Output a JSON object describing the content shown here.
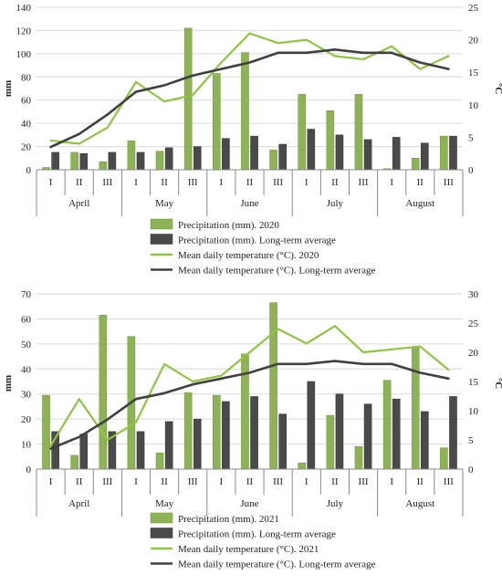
{
  "chart_data": [
    {
      "type": "bar",
      "periods": [
        "I",
        "II",
        "III",
        "I",
        "II",
        "III",
        "I",
        "II",
        "III",
        "I",
        "II",
        "III",
        "I",
        "II",
        "III"
      ],
      "months": [
        "April",
        "May",
        "June",
        "July",
        "August"
      ],
      "ylabel": "mm",
      "y2label": "°C",
      "ylim": [
        0,
        140
      ],
      "y2lim": [
        0,
        25
      ],
      "yticks": [
        "0",
        "20",
        "40",
        "60",
        "80",
        "100",
        "120",
        "140"
      ],
      "y2ticks": [
        "0",
        "5",
        "10",
        "15",
        "20",
        "25"
      ],
      "series": [
        {
          "name": "Precipitation (mm). 2020",
          "kind": "bar",
          "color": "#8db356",
          "values": [
            2,
            15,
            7,
            25,
            16,
            122,
            83,
            101,
            17,
            65,
            51,
            65,
            1,
            10,
            29
          ]
        },
        {
          "name": "Precipitation (mm). Long-term average",
          "kind": "bar",
          "color": "#4a4a4a",
          "values": [
            15,
            14,
            15,
            15,
            19,
            20,
            27,
            29,
            22,
            35,
            30,
            26,
            28,
            23,
            29
          ]
        },
        {
          "name": "Mean daily temperature (°C). 2020",
          "kind": "line",
          "color": "#8dc63f",
          "values": [
            4.5,
            4,
            6.5,
            13.5,
            10.5,
            11.5,
            16.5,
            21,
            19.5,
            20,
            17.5,
            17,
            19,
            15.5,
            17.5
          ]
        },
        {
          "name": "Mean daily temperature (°C). Long-term average",
          "kind": "line",
          "color": "#404040",
          "values": [
            3.5,
            5.5,
            8.5,
            12,
            13,
            14.5,
            15.5,
            16.5,
            18,
            18,
            18.5,
            18,
            18,
            16.5,
            15.5
          ]
        }
      ]
    },
    {
      "type": "bar",
      "periods": [
        "I",
        "II",
        "III",
        "I",
        "II",
        "III",
        "I",
        "II",
        "III",
        "I",
        "II",
        "III",
        "I",
        "II",
        "III"
      ],
      "months": [
        "April",
        "May",
        "June",
        "July",
        "August"
      ],
      "ylabel": "mm",
      "y2label": "°C",
      "ylim": [
        0,
        70
      ],
      "y2lim": [
        0,
        30
      ],
      "yticks": [
        "0",
        "10",
        "20",
        "30",
        "40",
        "50",
        "60",
        "70"
      ],
      "y2ticks": [
        "0",
        "5",
        "10",
        "15",
        "20",
        "25",
        "30"
      ],
      "series": [
        {
          "name": "Precipitation (mm). 2021",
          "kind": "bar",
          "color": "#8db356",
          "values": [
            29.5,
            5.5,
            61.5,
            53,
            6.5,
            30.5,
            29.5,
            46,
            66.5,
            2.5,
            21.5,
            9,
            35.5,
            48.5,
            8.5
          ]
        },
        {
          "name": "Precipitation (mm). Long-term average",
          "kind": "bar",
          "color": "#4a4a4a",
          "values": [
            15,
            14,
            15,
            15,
            19,
            20,
            27,
            29,
            22,
            35,
            30,
            26,
            28,
            23,
            29
          ]
        },
        {
          "name": "Mean daily temperature (°C). 2021",
          "kind": "line",
          "color": "#8dc63f",
          "values": [
            4,
            12,
            5,
            8,
            18,
            15,
            16,
            20,
            24,
            21.5,
            24.5,
            20,
            20.5,
            21,
            17
          ]
        },
        {
          "name": "Mean daily temperature (°C). Long-term average",
          "kind": "line",
          "color": "#404040",
          "values": [
            3.5,
            5.5,
            8.5,
            12,
            13,
            14.5,
            15.5,
            16.5,
            18,
            18,
            18.5,
            18,
            18,
            16.5,
            15.5
          ]
        }
      ]
    }
  ]
}
